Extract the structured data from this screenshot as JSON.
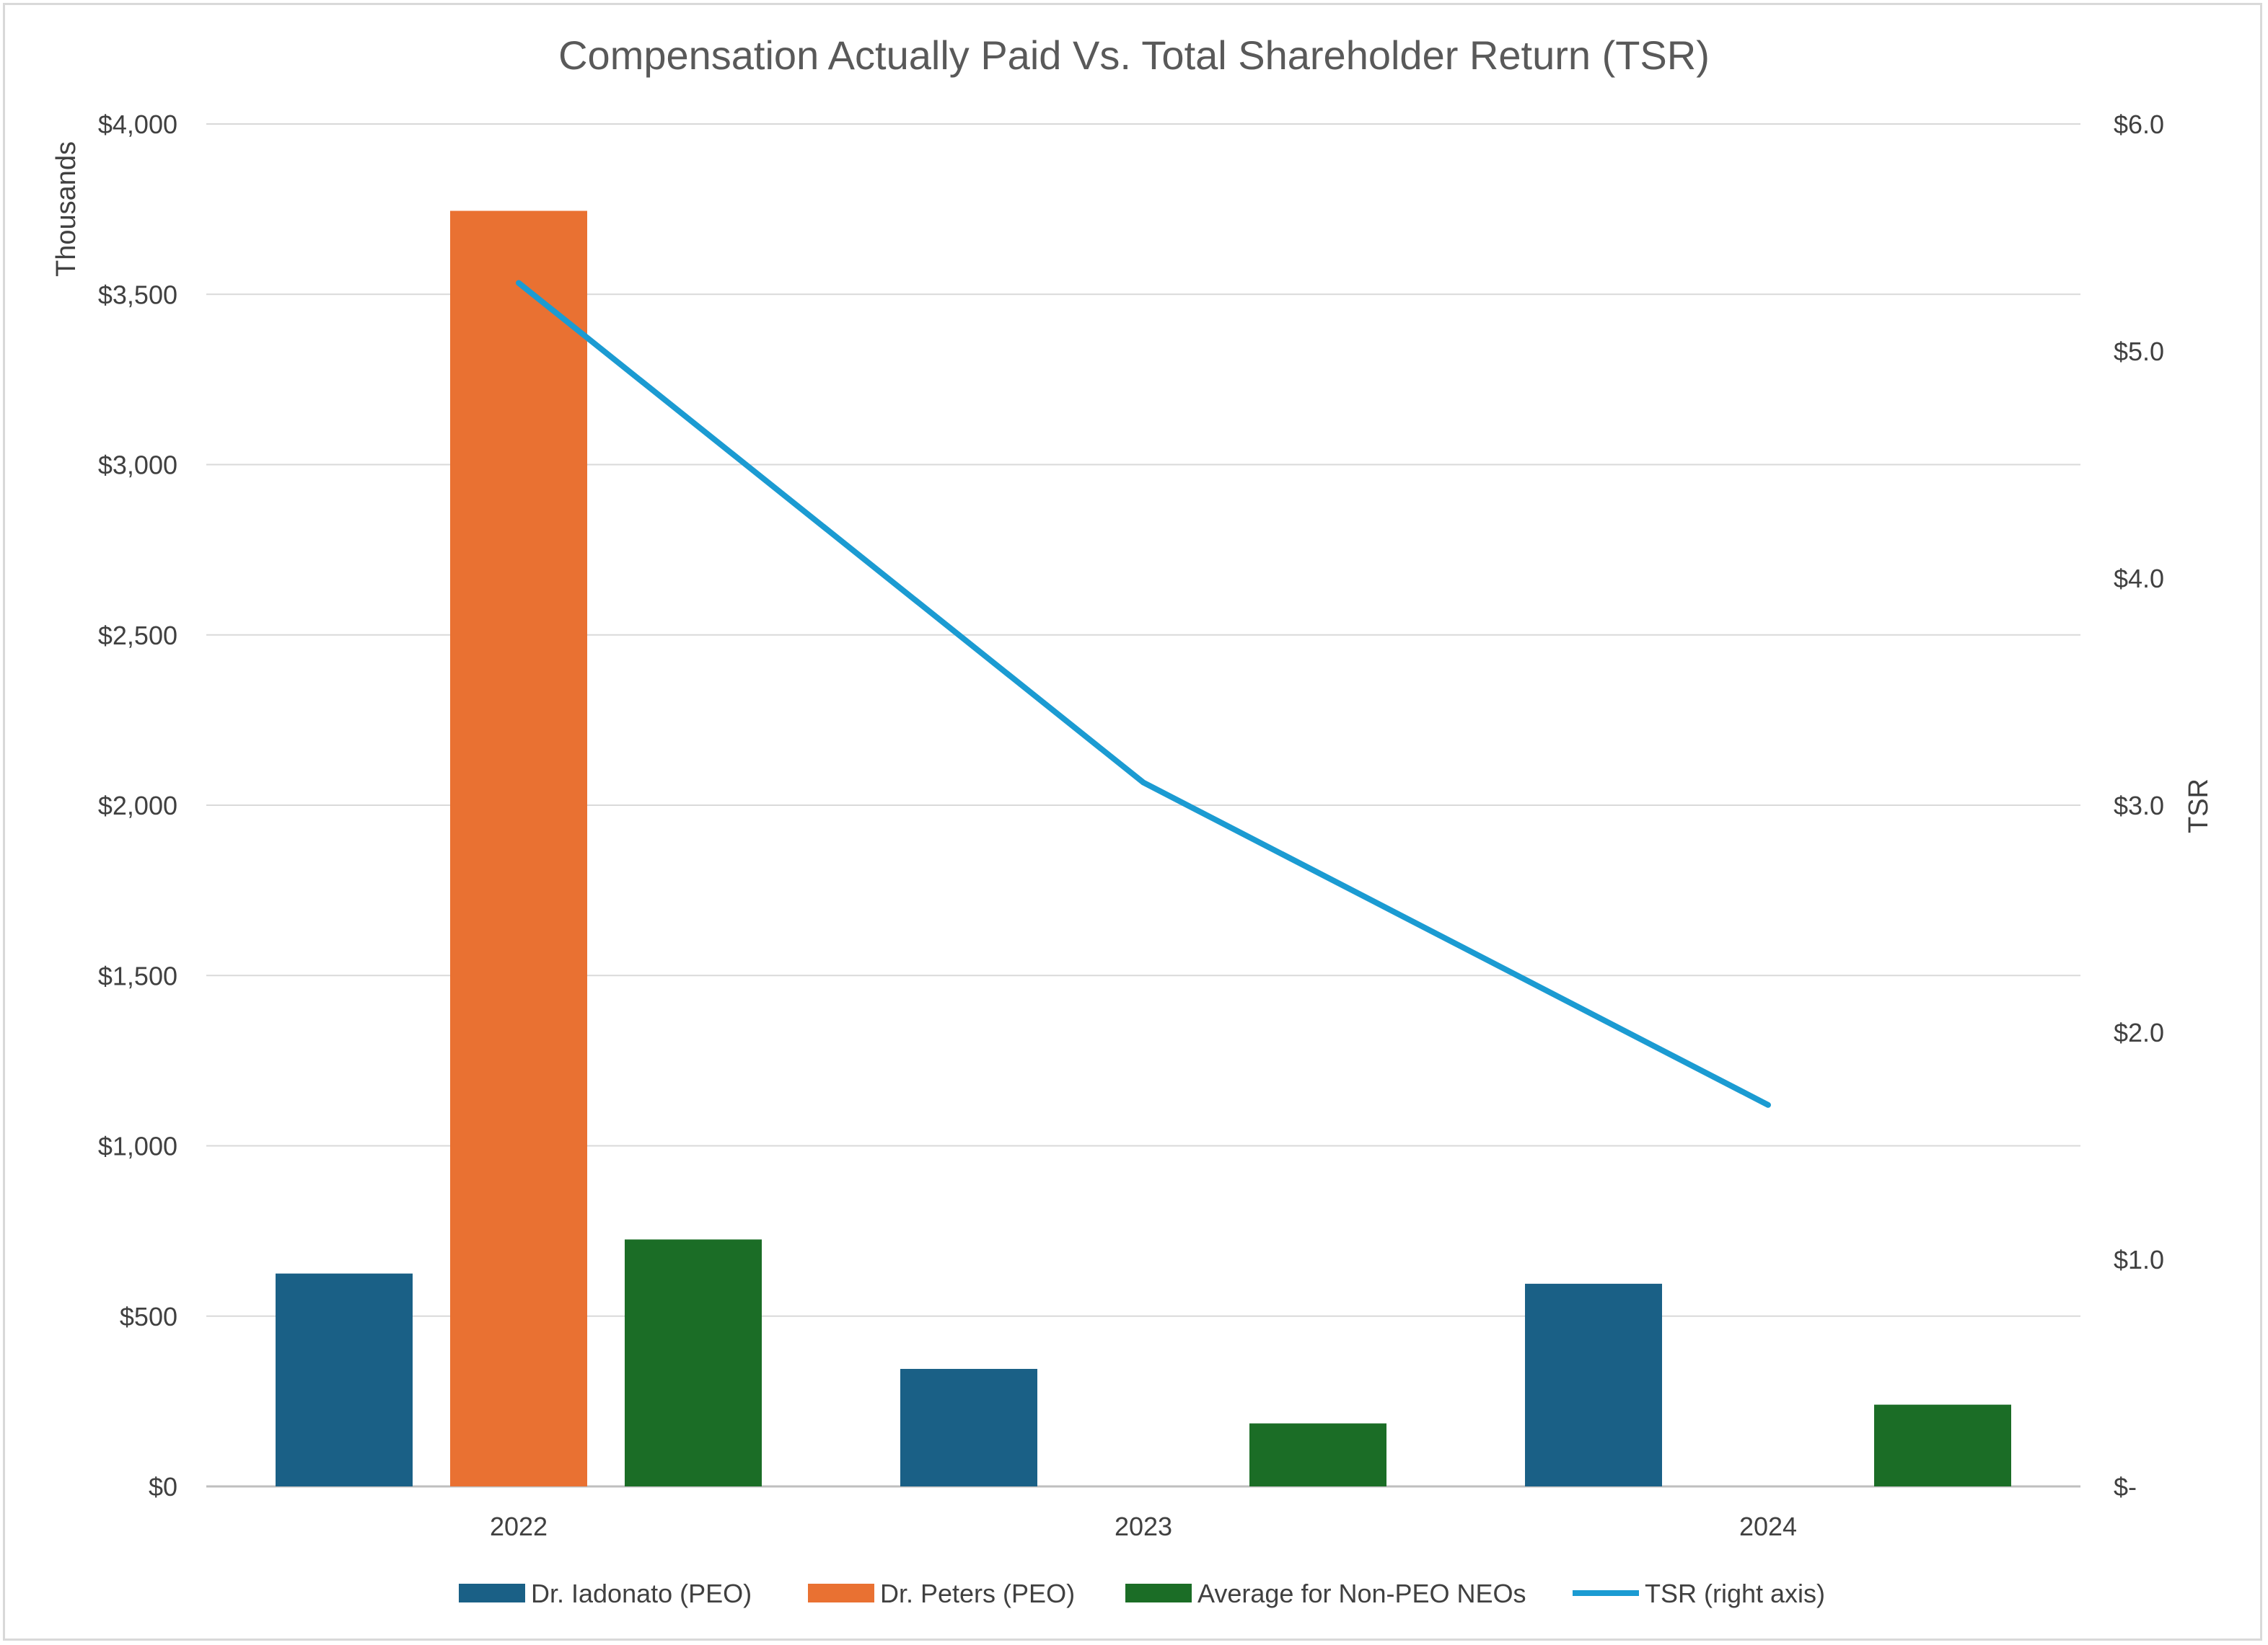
{
  "chart_data": {
    "type": "bar",
    "title": "Compensation Actually Paid Vs. Total Shareholder Return (TSR)",
    "categories": [
      "2022",
      "2023",
      "2024"
    ],
    "series": [
      {
        "name": "Dr. Iadonato (PEO)",
        "values": [
          625,
          345,
          595
        ],
        "color": "#1a6086",
        "kind": "bar"
      },
      {
        "name": "Dr. Peters (PEO)",
        "values": [
          3745,
          0,
          0
        ],
        "color": "#e97132",
        "kind": "bar"
      },
      {
        "name": "Average for Non-PEO NEOs",
        "values": [
          725,
          185,
          240
        ],
        "color": "#1b6d26",
        "kind": "bar"
      },
      {
        "name": "TSR (right axis)",
        "values": [
          5.3,
          3.1,
          1.68
        ],
        "color": "#1b9bd2",
        "kind": "line",
        "axis": "right"
      }
    ],
    "y_left": {
      "label": "Thousands",
      "ylim": [
        0,
        4000
      ],
      "ticks": [
        0,
        500,
        1000,
        1500,
        2000,
        2500,
        3000,
        3500,
        4000
      ],
      "tick_labels": [
        "$0",
        "$500",
        "$1,000",
        "$1,500",
        "$2,000",
        "$2,500",
        "$3,000",
        "$3,500",
        "$4,000"
      ]
    },
    "y_right": {
      "label": "TSR",
      "ylim": [
        0,
        6
      ],
      "ticks": [
        0,
        1,
        2,
        3,
        4,
        5,
        6
      ],
      "tick_labels": [
        "$-",
        "$1.0",
        "$2.0",
        "$3.0",
        "$4.0",
        "$5.0",
        "$6.0"
      ]
    },
    "grid": true,
    "legend_position": "bottom"
  }
}
